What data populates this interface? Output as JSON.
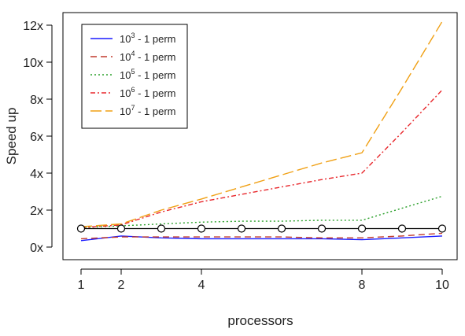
{
  "chart_data": {
    "type": "line",
    "title": "",
    "xlabel": "processors",
    "ylabel": "Speed up",
    "xlim": [
      1,
      10
    ],
    "ylim": [
      0,
      12
    ],
    "grid": false,
    "legend_position": "top-left",
    "x_ticks": [
      1,
      2,
      4,
      8,
      10
    ],
    "x_tick_labels": [
      "1",
      "2",
      "4",
      "8",
      "10"
    ],
    "y_ticks": [
      0,
      2,
      4,
      6,
      8,
      10,
      12
    ],
    "y_tick_labels": [
      "0x",
      "2x",
      "4x",
      "6x",
      "8x",
      "10x",
      "12x"
    ],
    "x": [
      1,
      2,
      3,
      4,
      5,
      6,
      7,
      8,
      9,
      10
    ],
    "series": [
      {
        "base": "10",
        "exp": "3",
        "suffix": " - 1 perm",
        "color": "#1a1aff",
        "dash": "",
        "values": [
          0.35,
          0.6,
          0.5,
          0.45,
          0.45,
          0.45,
          0.45,
          0.4,
          0.5,
          0.6
        ]
      },
      {
        "base": "10",
        "exp": "4",
        "suffix": " - 1 perm",
        "color": "#c0392b",
        "dash": "8,5",
        "values": [
          0.45,
          0.55,
          0.55,
          0.55,
          0.55,
          0.55,
          0.5,
          0.5,
          0.6,
          0.75
        ]
      },
      {
        "base": "10",
        "exp": "5",
        "suffix": " - 1 perm",
        "color": "#2ca02c",
        "dash": "2,3",
        "values": [
          1.05,
          1.15,
          1.25,
          1.35,
          1.4,
          1.4,
          1.45,
          1.45,
          2.1,
          2.75
        ]
      },
      {
        "base": "10",
        "exp": "6",
        "suffix": " - 1 perm",
        "color": "#e8262b",
        "dash": "6,3,2,3",
        "values": [
          1.05,
          1.2,
          1.9,
          2.45,
          2.85,
          3.25,
          3.65,
          4.0,
          6.2,
          8.5
        ]
      },
      {
        "base": "10",
        "exp": "7",
        "suffix": " - 1 perm",
        "color": "#f0a014",
        "dash": "14,5",
        "values": [
          1.1,
          1.25,
          2.0,
          2.6,
          3.25,
          3.9,
          4.55,
          5.1,
          8.6,
          12.2
        ]
      }
    ],
    "reference": {
      "color": "#000000",
      "values": [
        1,
        1,
        1,
        1,
        1,
        1,
        1,
        1,
        1,
        1
      ]
    }
  }
}
